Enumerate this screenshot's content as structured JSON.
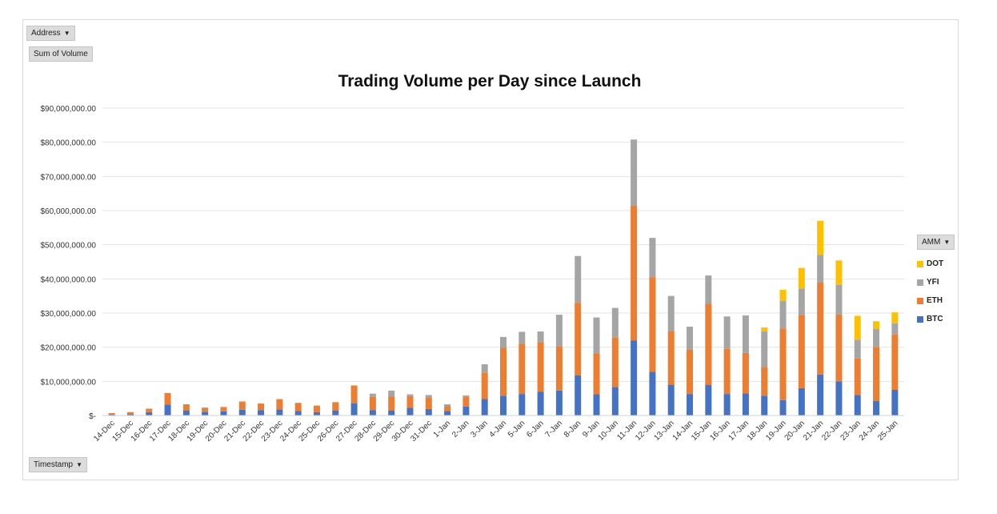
{
  "filters": {
    "address_label": "Address",
    "values_label": "Sum of Volume",
    "axis_field_label": "Timestamp",
    "legend_field_label": "AMM"
  },
  "chart_data": {
    "type": "bar",
    "stacked": true,
    "title": "Trading Volume per Day since Launch",
    "xlabel": "",
    "ylabel": "",
    "ylim": [
      0,
      90000000
    ],
    "yticks": [
      0,
      10000000,
      20000000,
      30000000,
      40000000,
      50000000,
      60000000,
      70000000,
      80000000,
      90000000
    ],
    "ytick_labels": [
      "$-",
      "$10,000,000.00",
      "$20,000,000.00",
      "$30,000,000.00",
      "$40,000,000.00",
      "$50,000,000.00",
      "$60,000,000.00",
      "$70,000,000.00",
      "$80,000,000.00",
      "$90,000,000.00"
    ],
    "grid": true,
    "legend_position": "right",
    "categories": [
      "14-Dec",
      "15-Dec",
      "16-Dec",
      "17-Dec",
      "18-Dec",
      "19-Dec",
      "20-Dec",
      "21-Dec",
      "22-Dec",
      "23-Dec",
      "24-Dec",
      "25-Dec",
      "26-Dec",
      "27-Dec",
      "28-Dec",
      "29-Dec",
      "30-Dec",
      "31-Dec",
      "1-Jan",
      "2-Jan",
      "3-Jan",
      "4-Jan",
      "5-Jan",
      "6-Jan",
      "7-Jan",
      "8-Jan",
      "9-Jan",
      "10-Jan",
      "11-Jan",
      "12-Jan",
      "13-Jan",
      "14-Jan",
      "15-Jan",
      "16-Jan",
      "17-Jan",
      "18-Jan",
      "19-Jan",
      "20-Jan",
      "21-Jan",
      "22-Jan",
      "23-Jan",
      "24-Jan",
      "25-Jan"
    ],
    "series": [
      {
        "name": "BTC",
        "color": "#4472C4",
        "values": [
          300000,
          400000,
          1000000,
          3200000,
          1500000,
          1100000,
          1200000,
          1700000,
          1600000,
          1800000,
          1300000,
          1000000,
          1500000,
          3600000,
          1600000,
          1500000,
          2300000,
          1900000,
          1300000,
          2600000,
          4800000,
          5800000,
          6300000,
          7000000,
          7300000,
          11800000,
          6200000,
          8300000,
          22000000,
          12800000,
          9000000,
          6300000,
          9000000,
          6300000,
          6500000,
          5800000,
          4500000,
          8000000,
          12000000,
          10000000,
          6000000,
          4300000,
          7500000
        ]
      },
      {
        "name": "ETH",
        "color": "#ED7D31",
        "values": [
          400000,
          600000,
          1000000,
          3400000,
          1800000,
          1200000,
          1300000,
          2400000,
          1900000,
          3000000,
          2400000,
          1900000,
          2400000,
          5200000,
          3800000,
          4100000,
          3400000,
          3400000,
          1400000,
          2800000,
          7700000,
          14000000,
          14700000,
          14500000,
          13000000,
          21200000,
          12000000,
          14500000,
          39500000,
          27700000,
          15800000,
          13000000,
          23700000,
          13200000,
          11800000,
          8400000,
          21000000,
          21400000,
          27000000,
          19600000,
          10700000,
          15700000,
          16200000
        ]
      },
      {
        "name": "YFI",
        "color": "#A5A5A5",
        "values": [
          0,
          0,
          0,
          0,
          0,
          0,
          0,
          0,
          0,
          0,
          0,
          0,
          0,
          0,
          1000000,
          1700000,
          500000,
          700000,
          600000,
          500000,
          2500000,
          3200000,
          3500000,
          3100000,
          9200000,
          13700000,
          10500000,
          8700000,
          19300000,
          11500000,
          10200000,
          6700000,
          8300000,
          9500000,
          11000000,
          10400000,
          8000000,
          7800000,
          8000000,
          8600000,
          5500000,
          5400000,
          3300000
        ]
      },
      {
        "name": "DOT",
        "color": "#FFC000",
        "values": [
          0,
          0,
          0,
          0,
          0,
          0,
          0,
          0,
          0,
          0,
          0,
          0,
          0,
          0,
          0,
          0,
          0,
          0,
          0,
          0,
          0,
          0,
          0,
          0,
          0,
          0,
          0,
          0,
          0,
          0,
          0,
          0,
          0,
          0,
          0,
          1200000,
          3300000,
          6000000,
          10000000,
          7200000,
          7000000,
          2200000,
          3200000
        ]
      }
    ]
  }
}
